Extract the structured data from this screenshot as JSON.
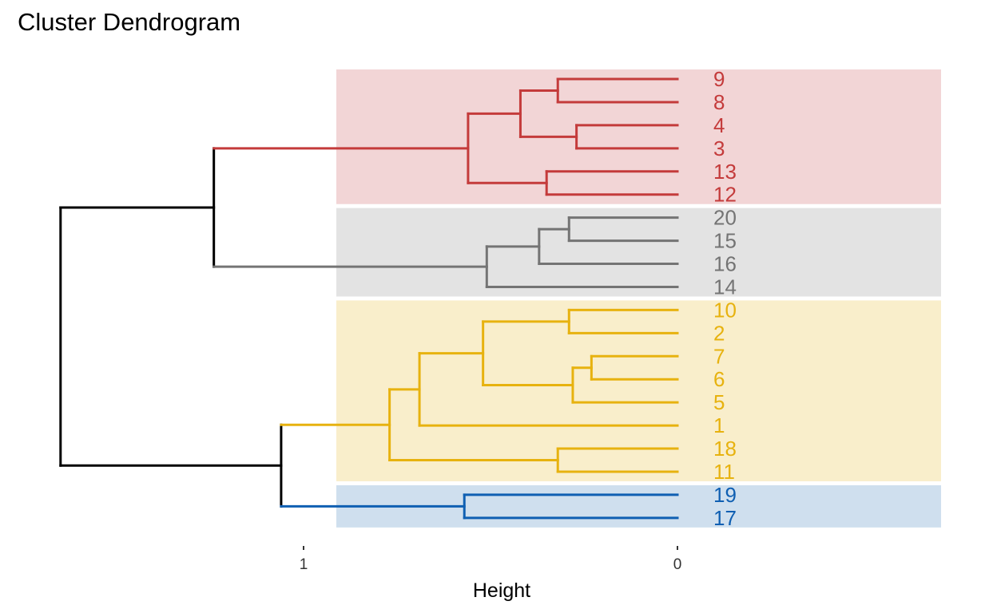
{
  "chart_data": {
    "type": "dendrogram",
    "title": "Cluster Dendrogram",
    "xlabel": "Height",
    "orientation": "horizontal",
    "x_ticks": [
      {
        "value": 1,
        "label": "1"
      },
      {
        "value": 0,
        "label": "0"
      }
    ],
    "leaves": [
      "9",
      "8",
      "4",
      "3",
      "13",
      "12",
      "20",
      "15",
      "16",
      "14",
      "10",
      "2",
      "7",
      "6",
      "5",
      "1",
      "18",
      "11",
      "19",
      "17"
    ],
    "merges": [
      {
        "id": "m1",
        "height": 0.32,
        "children": [
          "9",
          "8"
        ],
        "cluster": "red"
      },
      {
        "id": "m2",
        "height": 0.27,
        "children": [
          "4",
          "3"
        ],
        "cluster": "red"
      },
      {
        "id": "m3",
        "height": 0.42,
        "children": [
          "m1",
          "m2"
        ],
        "cluster": "red"
      },
      {
        "id": "m4",
        "height": 0.35,
        "children": [
          "13",
          "12"
        ],
        "cluster": "red"
      },
      {
        "id": "m5",
        "height": 0.56,
        "children": [
          "m3",
          "m4"
        ],
        "cluster": "red"
      },
      {
        "id": "m6",
        "height": 0.29,
        "children": [
          "20",
          "15"
        ],
        "cluster": "gray"
      },
      {
        "id": "m7",
        "height": 0.37,
        "children": [
          "m6",
          "16"
        ],
        "cluster": "gray"
      },
      {
        "id": "m8",
        "height": 0.51,
        "children": [
          "m7",
          "14"
        ],
        "cluster": "gray"
      },
      {
        "id": "m9",
        "height": 1.24,
        "children": [
          "m5",
          "m8"
        ],
        "cluster": "root"
      },
      {
        "id": "m10",
        "height": 0.29,
        "children": [
          "10",
          "2"
        ],
        "cluster": "yellow"
      },
      {
        "id": "m11",
        "height": 0.23,
        "children": [
          "7",
          "6"
        ],
        "cluster": "yellow"
      },
      {
        "id": "m12",
        "height": 0.28,
        "children": [
          "m11",
          "5"
        ],
        "cluster": "yellow"
      },
      {
        "id": "m13",
        "height": 0.52,
        "children": [
          "m10",
          "m12"
        ],
        "cluster": "yellow"
      },
      {
        "id": "m14",
        "height": 0.69,
        "children": [
          "m13",
          "1"
        ],
        "cluster": "yellow"
      },
      {
        "id": "m15",
        "height": 0.32,
        "children": [
          "18",
          "11"
        ],
        "cluster": "yellow"
      },
      {
        "id": "m16",
        "height": 0.77,
        "children": [
          "m14",
          "m15"
        ],
        "cluster": "yellow"
      },
      {
        "id": "m17",
        "height": 0.57,
        "children": [
          "19",
          "17"
        ],
        "cluster": "blue"
      },
      {
        "id": "m18",
        "height": 1.06,
        "children": [
          "m16",
          "m17"
        ],
        "cluster": "root"
      },
      {
        "id": "m19",
        "height": 1.65,
        "children": [
          "m9",
          "m18"
        ],
        "cluster": "root"
      }
    ],
    "clusters": [
      {
        "name": "red",
        "color": "#c43b3b",
        "fill": "#f2d5d6",
        "leaves": [
          "9",
          "8",
          "4",
          "3",
          "13",
          "12"
        ]
      },
      {
        "name": "gray",
        "color": "#747474",
        "fill": "#e3e3e3",
        "leaves": [
          "20",
          "15",
          "16",
          "14"
        ]
      },
      {
        "name": "yellow",
        "color": "#e7b20f",
        "fill": "#f9eecb",
        "leaves": [
          "10",
          "2",
          "7",
          "6",
          "5",
          "1",
          "18",
          "11"
        ]
      },
      {
        "name": "blue",
        "color": "#0f5fb2",
        "fill": "#cfdfee",
        "leaves": [
          "19",
          "17"
        ]
      }
    ],
    "root_color": "#000000",
    "grid": false,
    "legend": "none"
  }
}
